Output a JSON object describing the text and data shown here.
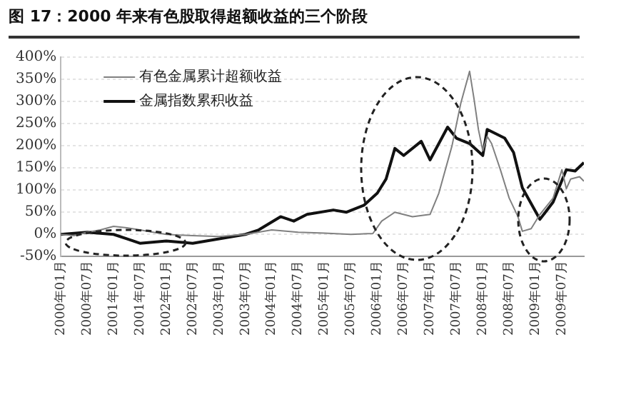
{
  "chart_data": {
    "type": "line",
    "title": "图 17：2000 年来有色股取得超额收益的三个阶段",
    "xlim": [
      "2000-01",
      "2009-12"
    ],
    "xticks": [
      {
        "value": "2000-01",
        "label": "2000年01月"
      },
      {
        "value": "2000-07",
        "label": "2000年07月"
      },
      {
        "value": "2001-01",
        "label": "2001年01月"
      },
      {
        "value": "2001-07",
        "label": "2001年07月"
      },
      {
        "value": "2002-01",
        "label": "2002年01月"
      },
      {
        "value": "2002-07",
        "label": "2002年07月"
      },
      {
        "value": "2003-01",
        "label": "2003年01月"
      },
      {
        "value": "2003-07",
        "label": "2003年07月"
      },
      {
        "value": "2004-01",
        "label": "2004年01月"
      },
      {
        "value": "2004-07",
        "label": "2004年07月"
      },
      {
        "value": "2005-01",
        "label": "2005年01月"
      },
      {
        "value": "2005-07",
        "label": "2005年07月"
      },
      {
        "value": "2006-01",
        "label": "2006年01月"
      },
      {
        "value": "2006-07",
        "label": "2006年07月"
      },
      {
        "value": "2007-01",
        "label": "2007年01月"
      },
      {
        "value": "2007-07",
        "label": "2007年07月"
      },
      {
        "value": "2008-01",
        "label": "2008年01月"
      },
      {
        "value": "2008-07",
        "label": "2008年07月"
      },
      {
        "value": "2009-01",
        "label": "2009年01月"
      },
      {
        "value": "2009-07",
        "label": "2009年07月"
      }
    ],
    "ylim": [
      -50,
      400
    ],
    "yticks": [
      {
        "value": -50,
        "label": "-50%"
      },
      {
        "value": 0,
        "label": "0%"
      },
      {
        "value": 50,
        "label": "50%"
      },
      {
        "value": 100,
        "label": "100%"
      },
      {
        "value": 150,
        "label": "150%"
      },
      {
        "value": 200,
        "label": "200%"
      },
      {
        "value": 250,
        "label": "250%"
      },
      {
        "value": 300,
        "label": "300%"
      },
      {
        "value": 350,
        "label": "350%"
      },
      {
        "value": 400,
        "label": "400%"
      }
    ],
    "grid": "y",
    "legend": "top left",
    "marker": "none",
    "line_style": "solid",
    "series": [
      {
        "name": "有色金属累计超额收益",
        "color": "#808080",
        "x": [
          "2000-01",
          "2000-04",
          "2000-07",
          "2000-10",
          "2001-01",
          "2001-04",
          "2001-07",
          "2001-10",
          "2002-01",
          "2002-07",
          "2003-01",
          "2003-07",
          "2004-01",
          "2004-07",
          "2005-01",
          "2005-07",
          "2005-12",
          "2006-02",
          "2006-05",
          "2006-09",
          "2007-01",
          "2007-03",
          "2007-06",
          "2007-08",
          "2007-10",
          "2007-11",
          "2007-12",
          "2008-01",
          "2008-02",
          "2008-03",
          "2008-05",
          "2008-07",
          "2008-09",
          "2008-10",
          "2008-12",
          "2009-02",
          "2009-05",
          "2009-07",
          "2009-08",
          "2009-09",
          "2009-11",
          "2009-12"
        ],
        "values": [
          0,
          -3,
          5,
          10,
          18,
          15,
          10,
          5,
          0,
          -3,
          -5,
          0,
          10,
          5,
          3,
          0,
          2,
          30,
          50,
          40,
          45,
          93,
          200,
          296,
          368,
          306,
          237,
          189,
          221,
          205,
          146,
          82,
          40,
          7,
          13,
          45,
          82,
          146,
          103,
          125,
          130,
          120
        ]
      },
      {
        "name": "金属指数累积收益",
        "color": "#111111",
        "x": [
          "2000-01",
          "2000-07",
          "2001-01",
          "2001-04",
          "2001-07",
          "2002-01",
          "2002-07",
          "2003-01",
          "2003-07",
          "2003-10",
          "2004-03",
          "2004-06",
          "2004-09",
          "2005-03",
          "2005-06",
          "2005-10",
          "2006-01",
          "2006-03",
          "2006-05",
          "2006-07",
          "2006-11",
          "2007-01",
          "2007-05",
          "2007-07",
          "2007-10",
          "2008-01",
          "2008-02",
          "2008-06",
          "2008-08",
          "2008-10",
          "2009-02",
          "2009-05",
          "2009-08",
          "2009-10",
          "2009-12"
        ],
        "values": [
          0,
          5,
          0,
          -10,
          -20,
          -15,
          -20,
          -10,
          0,
          10,
          40,
          30,
          45,
          55,
          50,
          66,
          93,
          125,
          194,
          178,
          210,
          168,
          242,
          217,
          205,
          178,
          237,
          217,
          185,
          105,
          34,
          73,
          146,
          143,
          162
        ]
      }
    ]
  }
}
